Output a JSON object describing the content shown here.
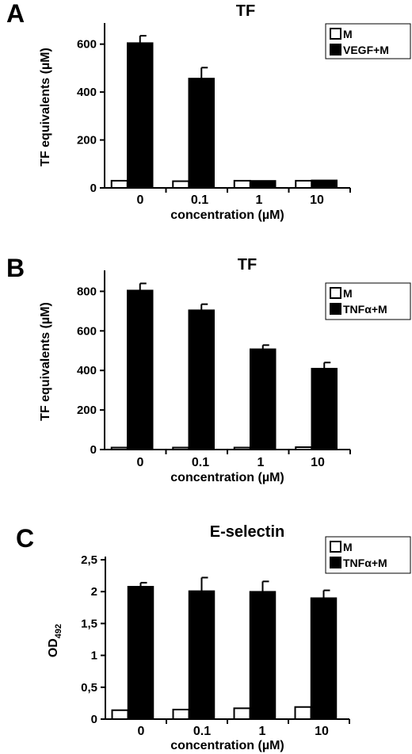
{
  "chart_data": [
    {
      "type": "bar",
      "panel_letter": "A",
      "title": "TF",
      "xlabel": "concentration (µM)",
      "ylabel": "TF equivalents (µM)",
      "categories": [
        "0",
        "0.1",
        "1",
        "10"
      ],
      "yticks": [
        "0",
        "200",
        "400",
        "600"
      ],
      "ytick_values": [
        0,
        200,
        400,
        600
      ],
      "ylim": [
        0,
        675
      ],
      "legend": "top-right",
      "series": [
        {
          "name": "M",
          "color": "#ffffff",
          "values": [
            30,
            28,
            30,
            30
          ],
          "errors": [
            0,
            0,
            0,
            0
          ]
        },
        {
          "name": "VEGF+M",
          "color": "#000000",
          "values": [
            605,
            457,
            30,
            32
          ],
          "errors": [
            30,
            45,
            0,
            0
          ]
        }
      ]
    },
    {
      "type": "bar",
      "panel_letter": "B",
      "title": "TF",
      "xlabel": "concentration (µM)",
      "ylabel": "TF equivalents (µM)",
      "categories": [
        "0",
        "0.1",
        "1",
        "10"
      ],
      "yticks": [
        "0",
        "200",
        "400",
        "600",
        "800"
      ],
      "ytick_values": [
        0,
        200,
        400,
        600,
        800
      ],
      "ylim": [
        0,
        890
      ],
      "legend": "top-right",
      "series": [
        {
          "name": "M",
          "color": "#ffffff",
          "values": [
            10,
            10,
            10,
            12
          ],
          "errors": [
            0,
            0,
            0,
            0
          ]
        },
        {
          "name": "TNFα+M",
          "color": "#000000",
          "values": [
            805,
            705,
            508,
            410
          ],
          "errors": [
            35,
            30,
            20,
            30
          ]
        }
      ]
    },
    {
      "type": "bar",
      "panel_letter": "C",
      "title": "E-selectin",
      "xlabel": "concentration (µM)",
      "ylabel": "OD492",
      "ylabel_main": "OD",
      "ylabel_sub": "492",
      "categories": [
        "0",
        "0.1",
        "1",
        "10"
      ],
      "yticks": [
        "0",
        "0,5",
        "1",
        "1,5",
        "2",
        "2,5"
      ],
      "ytick_values": [
        0,
        0.5,
        1,
        1.5,
        2,
        2.5
      ],
      "ylim": [
        0,
        2.5
      ],
      "legend": "top-right",
      "series": [
        {
          "name": "M",
          "color": "#ffffff",
          "values": [
            0.14,
            0.15,
            0.17,
            0.19
          ],
          "errors": [
            0,
            0,
            0,
            0
          ]
        },
        {
          "name": "TNFα+M",
          "color": "#000000",
          "values": [
            2.08,
            2.01,
            2.0,
            1.9
          ],
          "errors": [
            0.06,
            0.21,
            0.16,
            0.12
          ]
        }
      ]
    }
  ]
}
